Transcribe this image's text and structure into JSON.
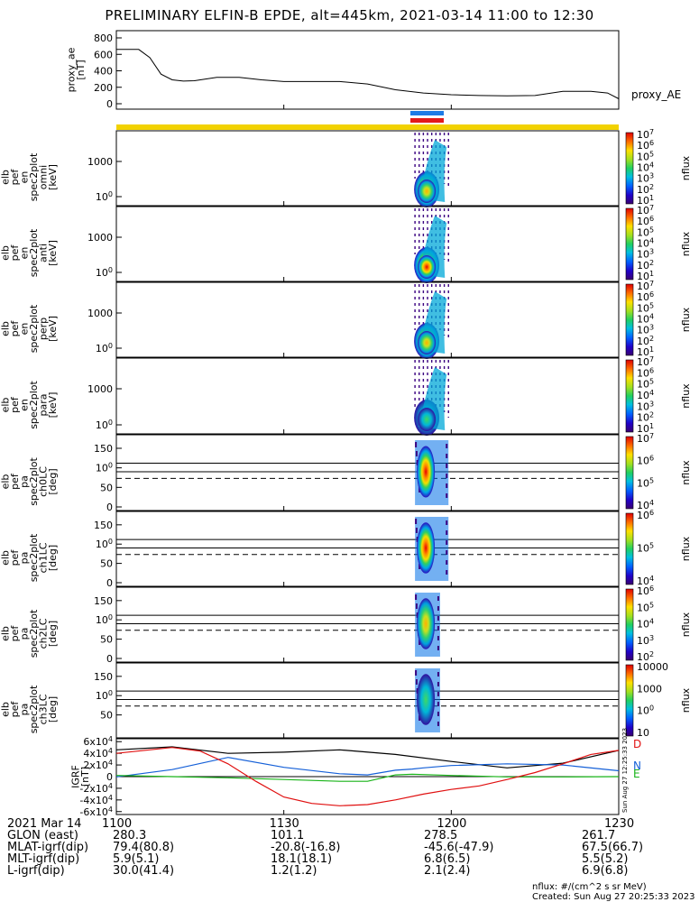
{
  "title": "PRELIMINARY ELFIN-B EPDE, alt=445km, 2021-03-14 11:00 to 12:30",
  "colors": {
    "axis": "#000000",
    "blue": "#1560d8",
    "red": "#e01010",
    "green": "#18b418",
    "yellow": "#f2d200",
    "bar_blue": "#1e7be6",
    "bar_red": "#e31a1a"
  },
  "chart_data": [
    {
      "type": "line",
      "name": "proxy_ae",
      "title": "",
      "ylabel_lines": [
        "proxy_ae",
        "[nT]"
      ],
      "legend": "proxy_AE",
      "ylim": [
        0,
        850
      ],
      "yticks": [
        "0",
        "200",
        "400",
        "600",
        "800"
      ],
      "xlim": [
        0,
        90
      ],
      "x": [
        0,
        4,
        6,
        8,
        10,
        12,
        14,
        18,
        22,
        26,
        30,
        35,
        40,
        45,
        50,
        55,
        60,
        65,
        70,
        75,
        80,
        85,
        88,
        90
      ],
      "y": [
        660,
        660,
        560,
        360,
        290,
        275,
        280,
        320,
        320,
        290,
        270,
        270,
        270,
        240,
        170,
        130,
        110,
        100,
        95,
        100,
        150,
        150,
        130,
        60
      ]
    },
    {
      "type": "heatmap",
      "name": "elb_pef_en_spec2plot_omni",
      "ylabel_lines": [
        "elb",
        "pef",
        "en",
        "spec2plot",
        "omni",
        "[keV]"
      ],
      "yaxis": "log",
      "yticks": [
        "100",
        "1000"
      ],
      "colorbar": {
        "label": "nflux",
        "ticks": [
          "101",
          "102",
          "103",
          "104",
          "105",
          "106",
          "107"
        ]
      },
      "burst_start_min": 53.5,
      "burst_end_min": 59.5
    },
    {
      "type": "heatmap",
      "name": "elb_pef_en_spec2plot_anti",
      "ylabel_lines": [
        "elb",
        "pef",
        "en",
        "spec2plot",
        "anti",
        "[keV]"
      ],
      "yaxis": "log",
      "yticks": [
        "100",
        "1000"
      ],
      "colorbar": {
        "label": "nflux",
        "ticks": [
          "101",
          "102",
          "103",
          "104",
          "105",
          "106",
          "107"
        ]
      },
      "burst_start_min": 53.5,
      "burst_end_min": 59.5
    },
    {
      "type": "heatmap",
      "name": "elb_pef_en_spec2plot_perp",
      "ylabel_lines": [
        "elb",
        "pef",
        "en",
        "spec2plot",
        "perp",
        "[keV]"
      ],
      "yaxis": "log",
      "yticks": [
        "100",
        "1000"
      ],
      "colorbar": {
        "label": "nflux",
        "ticks": [
          "101",
          "102",
          "103",
          "104",
          "105",
          "106",
          "107"
        ]
      },
      "burst_start_min": 53.5,
      "burst_end_min": 59.5
    },
    {
      "type": "heatmap",
      "name": "elb_pef_en_spec2plot_para",
      "ylabel_lines": [
        "elb",
        "pef",
        "en",
        "spec2plot",
        "para",
        "[keV]"
      ],
      "yaxis": "log",
      "yticks": [
        "100",
        "1000"
      ],
      "colorbar": {
        "label": "nflux",
        "ticks": [
          "101",
          "102",
          "103",
          "104",
          "105",
          "106",
          "107"
        ]
      },
      "burst_start_min": 53.5,
      "burst_end_min": 59.5
    },
    {
      "type": "heatmap",
      "name": "elb_pef_pa_spec2plot_ch0LC",
      "ylabel_lines": [
        "elb",
        "pef",
        "pa",
        "spec2plot",
        "ch0LC",
        "[deg]"
      ],
      "ylim": [
        0,
        180
      ],
      "yticks": [
        "0",
        "50",
        "100",
        "150"
      ],
      "lines_deg": [
        112,
        90
      ],
      "dashed_deg": 73,
      "colorbar": {
        "label": "nflux",
        "ticks": [
          "104",
          "105",
          "106",
          "107"
        ]
      },
      "burst_start_min": 53.5,
      "burst_end_min": 59.5
    },
    {
      "type": "heatmap",
      "name": "elb_pef_pa_spec2plot_ch1LC",
      "ylabel_lines": [
        "elb",
        "pef",
        "pa",
        "spec2plot",
        "ch1LC",
        "[deg]"
      ],
      "ylim": [
        0,
        180
      ],
      "yticks": [
        "0",
        "50",
        "100",
        "150"
      ],
      "lines_deg": [
        112,
        90
      ],
      "dashed_deg": 73,
      "colorbar": {
        "label": "nflux",
        "ticks": [
          "104",
          "105",
          "106"
        ]
      },
      "burst_start_min": 53.5,
      "burst_end_min": 59.5
    },
    {
      "type": "heatmap",
      "name": "elb_pef_pa_spec2plot_ch2LC",
      "ylabel_lines": [
        "elb",
        "pef",
        "pa",
        "spec2plot",
        "ch2LC",
        "[deg]"
      ],
      "ylim": [
        0,
        180
      ],
      "yticks": [
        "0",
        "50",
        "100",
        "150"
      ],
      "lines_deg": [
        112,
        90
      ],
      "dashed_deg": 73,
      "colorbar": {
        "label": "nflux",
        "ticks": [
          "102",
          "103",
          "104",
          "105",
          "106"
        ]
      },
      "burst_start_min": 53.5,
      "burst_end_min": 59.5
    },
    {
      "type": "heatmap",
      "name": "elb_pef_pa_spec2plot_ch3LC",
      "ylabel_lines": [
        "elb",
        "pef",
        "pa",
        "spec2plot",
        "ch3LC",
        "[deg]"
      ],
      "ylim": [
        0,
        180
      ],
      "yticks": [
        "50",
        "100",
        "150"
      ],
      "lines_deg": [
        112,
        90
      ],
      "dashed_deg": 73,
      "colorbar": {
        "label": "nflux",
        "ticks": [
          "10",
          "100",
          "1000",
          "10000"
        ]
      },
      "burst_start_min": 53.5,
      "burst_end_min": 59.5
    },
    {
      "type": "line",
      "name": "IGRF",
      "ylabel_lines": [
        "IGRF",
        "[nT]"
      ],
      "ylim": [
        -65000,
        65000
      ],
      "yticks": [
        "-6x10^4",
        "-4x10^4",
        "-2x10^4",
        "0",
        "2x10^4",
        "4x10^4",
        "6x10^4"
      ],
      "legend": [
        "D",
        "N",
        "E"
      ],
      "stamp": "Sun Aug 27 12:25:33 2023",
      "xlim": [
        0,
        90
      ],
      "series": [
        {
          "name": "total",
          "color_key": "axis",
          "x": [
            0,
            10,
            20,
            30,
            40,
            50,
            60,
            70,
            80,
            90
          ],
          "y": [
            46000,
            51000,
            40000,
            42000,
            46000,
            38000,
            26000,
            15000,
            23000,
            45000
          ]
        },
        {
          "name": "N",
          "color_key": "blue",
          "x": [
            0,
            10,
            20,
            30,
            40,
            45,
            50,
            53,
            55,
            60,
            70,
            80,
            90
          ],
          "y": [
            -500,
            12000,
            33000,
            16000,
            5000,
            3000,
            11000,
            13000,
            15000,
            19000,
            22000,
            20000,
            10000
          ]
        },
        {
          "name": "E",
          "color_key": "green",
          "x": [
            0,
            10,
            20,
            30,
            40,
            45,
            50,
            53,
            60,
            70,
            80,
            90
          ],
          "y": [
            2000,
            0,
            -2000,
            -5000,
            -8000,
            -8000,
            3000,
            4000,
            2000,
            -500,
            -500,
            0
          ]
        },
        {
          "name": "D",
          "color_key": "red",
          "x": [
            0,
            10,
            15,
            20,
            25,
            30,
            35,
            40,
            45,
            50,
            55,
            60,
            65,
            70,
            75,
            80,
            85,
            90
          ],
          "y": [
            40000,
            50000,
            44000,
            22000,
            -8000,
            -35000,
            -46000,
            -50000,
            -48000,
            -40000,
            -30000,
            -22000,
            -16000,
            -5000,
            7000,
            22000,
            38000,
            45000
          ]
        }
      ]
    }
  ],
  "xaxis": {
    "ticks": [
      "1100",
      "1130",
      "1200",
      "1230"
    ],
    "tick_minutes": [
      0,
      30,
      60,
      90
    ],
    "date_label": "2021 Mar 14"
  },
  "footer": {
    "rows": [
      {
        "label": "GLON (east)",
        "values": [
          "280.3",
          "101.1",
          "278.5",
          "261.7"
        ]
      },
      {
        "label": "MLAT-igrf(dip)",
        "values": [
          "79.4(80.8)",
          "-20.8(-16.8)",
          "-45.6(-47.9)",
          "67.5(66.7)"
        ]
      },
      {
        "label": "MLT-igrf(dip)",
        "values": [
          "5.9(5.1)",
          "18.1(18.1)",
          "6.8(6.5)",
          "5.5(5.2)"
        ]
      },
      {
        "label": "L-igrf(dip)",
        "values": [
          "30.0(41.4)",
          "1.2(1.2)",
          "2.1(2.4)",
          "6.9(6.8)"
        ]
      }
    ],
    "units_note": "nflux: #/(cm^2 s sr MeV)",
    "created": "Created: Sun Aug 27 20:25:33 2023"
  }
}
